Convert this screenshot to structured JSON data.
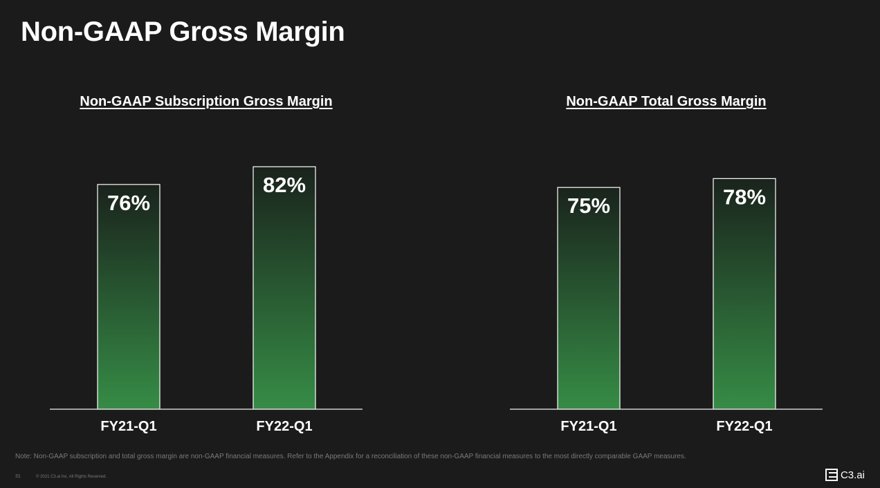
{
  "page": {
    "title": "Non-GAAP Gross Margin",
    "note": "Note: Non-GAAP subscription and total gross margin are non-GAAP financial measures. Refer to the Appendix for a reconciliation of these non-GAAP financial measures to the most directly comparable GAAP measures.",
    "page_number": "31",
    "copyright": "© 2021 C3.ai Inc. All Rights Reserved.",
    "brand": "C3.ai"
  },
  "colors": {
    "background": "#1b1b1b",
    "bar_top": "#1a231c",
    "bar_bottom": "#368c46",
    "bar_border": "#ffffff",
    "axis": "#cfcfcf",
    "text": "#ffffff",
    "muted_text": "#7a7a7a"
  },
  "icons": {
    "brand_logo": "c3-logo-icon"
  },
  "chart_data": [
    {
      "type": "bar",
      "title": "Non-GAAP Subscription Gross Margin",
      "categories": [
        "FY21-Q1",
        "FY22-Q1"
      ],
      "values": [
        76,
        82
      ],
      "labels": [
        "76%",
        "82%"
      ],
      "ylim": [
        0,
        90
      ],
      "grid": false,
      "legend": "none"
    },
    {
      "type": "bar",
      "title": "Non-GAAP Total Gross Margin",
      "categories": [
        "FY21-Q1",
        "FY22-Q1"
      ],
      "values": [
        75,
        78
      ],
      "labels": [
        "75%",
        "78%"
      ],
      "ylim": [
        0,
        90
      ],
      "grid": false,
      "legend": "none"
    }
  ]
}
